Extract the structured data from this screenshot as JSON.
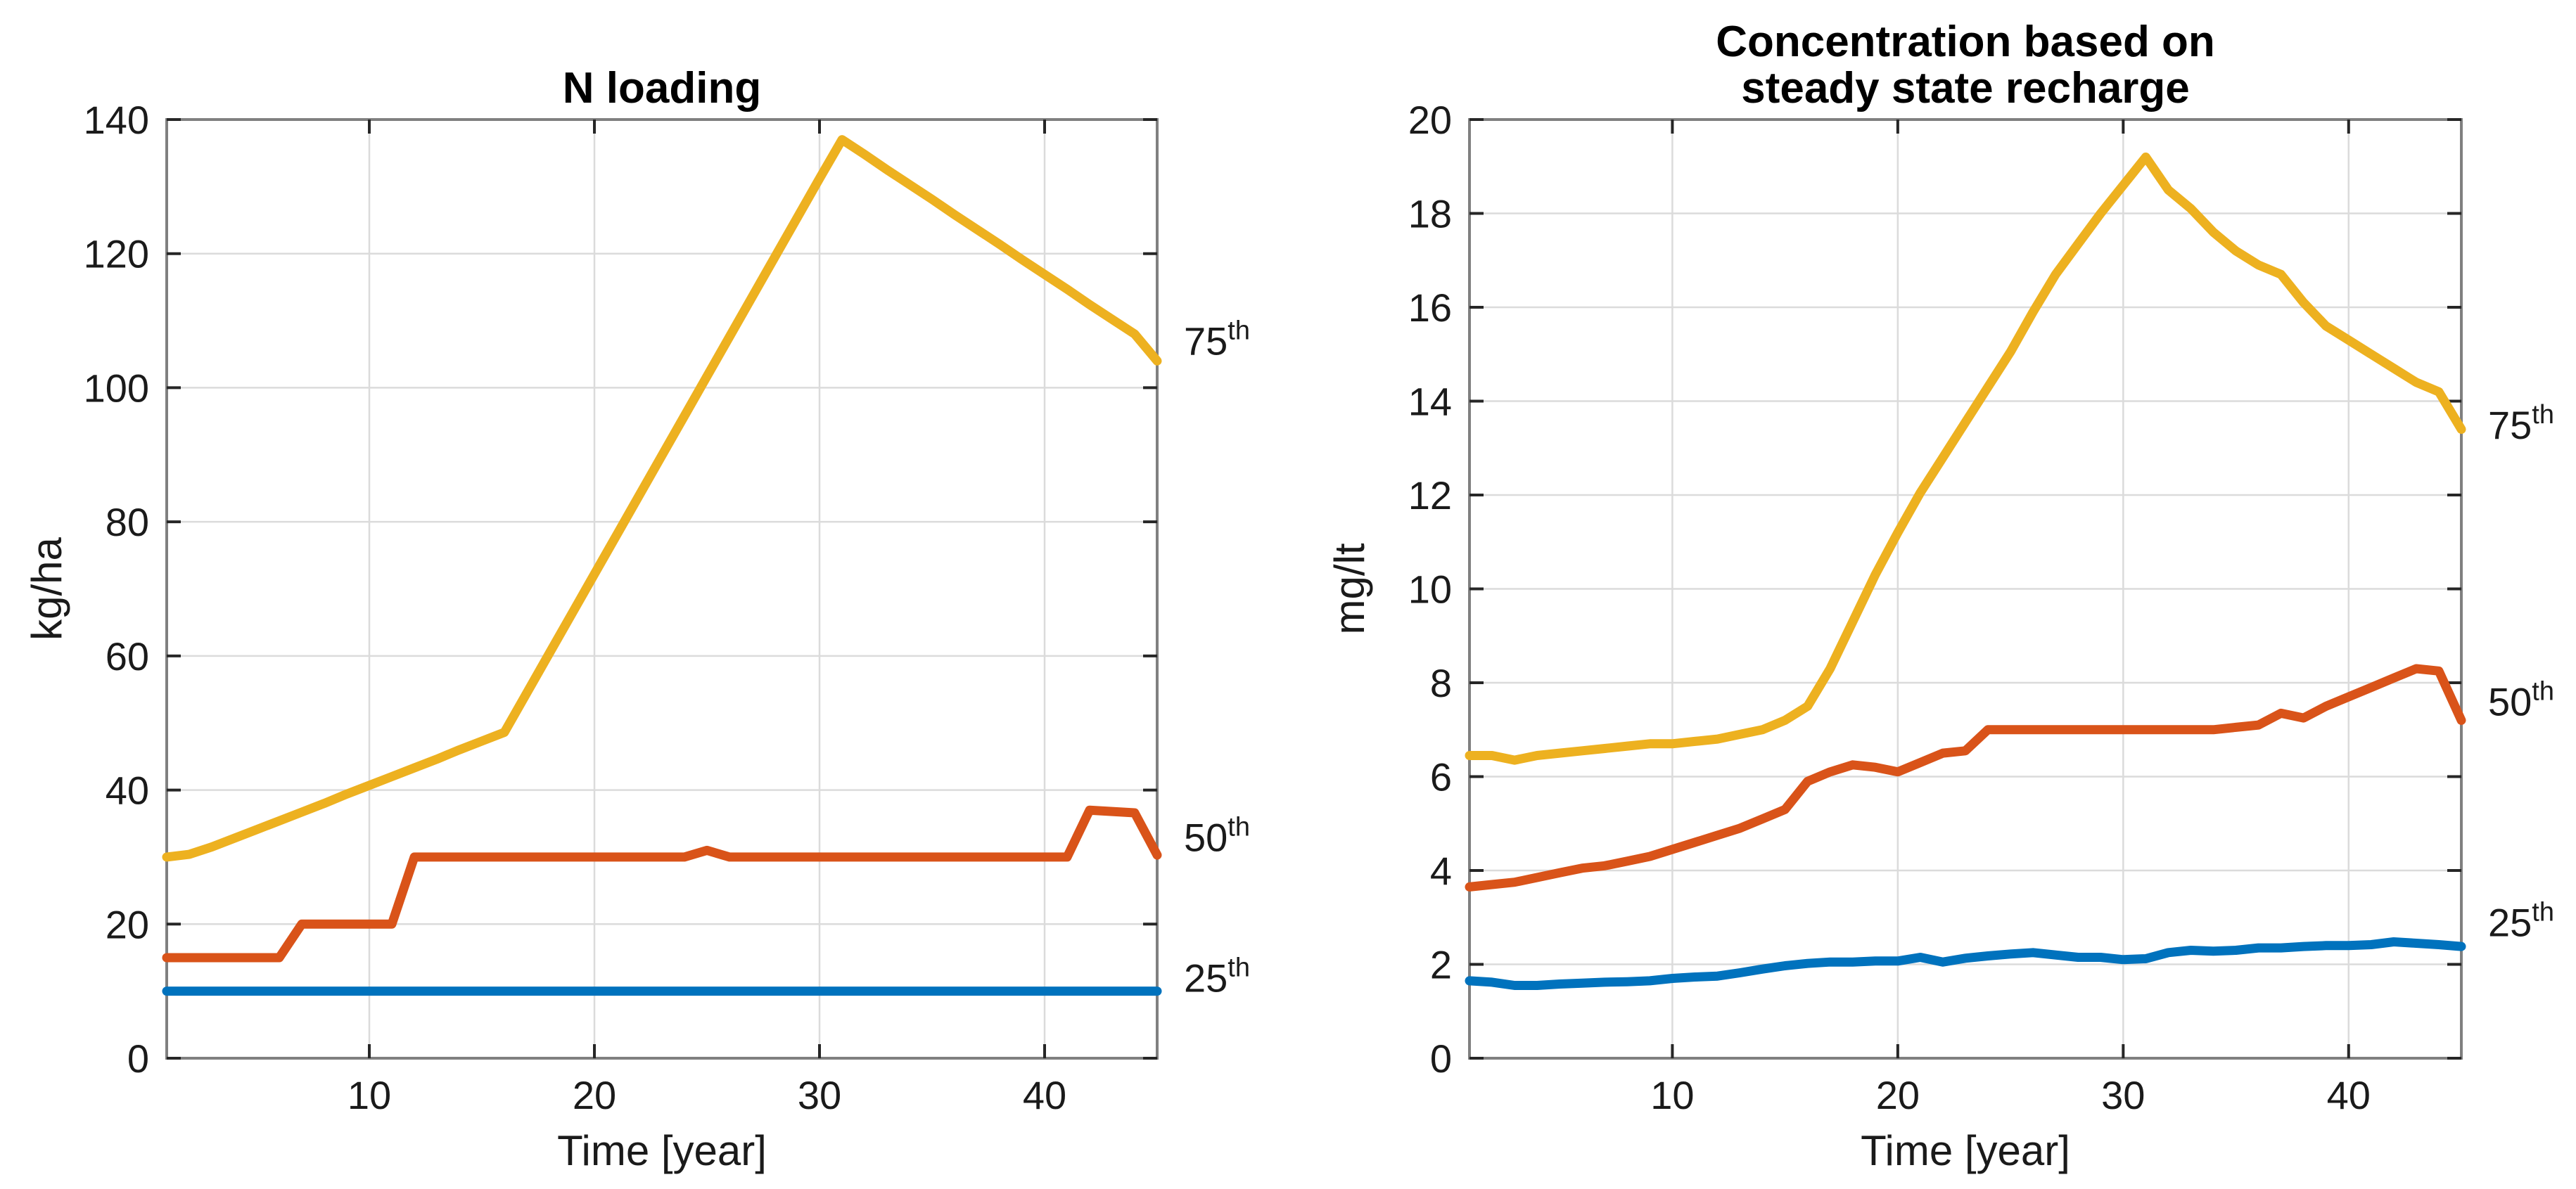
{
  "figure": {
    "background": "#ffffff",
    "description": "Two-panel percentile line chart figure"
  },
  "colors": {
    "p25": "#0072BD",
    "p50": "#D95319",
    "p75": "#EDB120",
    "grid": "#DBDBDB",
    "axis_box": "#808080",
    "tick_mark": "#262626",
    "text": "#1A1A1A"
  },
  "chart_data": [
    {
      "type": "line",
      "title_lines": [
        "N loading"
      ],
      "xlabel": "Time [year]",
      "ylabel": "kg/ha",
      "xlim": [
        1,
        45
      ],
      "ylim": [
        0,
        140
      ],
      "xticks": [
        10,
        20,
        30,
        40
      ],
      "yticks": [
        0,
        20,
        40,
        60,
        80,
        100,
        120,
        140
      ],
      "grid": true,
      "legend_position": "right-annotations",
      "x": [
        1,
        2,
        3,
        4,
        5,
        6,
        7,
        8,
        9,
        10,
        11,
        12,
        13,
        14,
        15,
        16,
        17,
        18,
        19,
        20,
        21,
        22,
        23,
        24,
        25,
        26,
        27,
        28,
        29,
        30,
        31,
        32,
        33,
        34,
        35,
        36,
        37,
        38,
        39,
        40,
        41,
        42,
        43,
        44,
        45
      ],
      "series": [
        {
          "name": "75th",
          "color_key": "p75",
          "values": [
            30,
            30.4,
            31.5,
            32.8,
            34.1,
            35.4,
            36.7,
            38,
            39.4,
            40.7,
            42,
            43.3,
            44.6,
            46,
            47.3,
            48.6,
            54.5,
            60.4,
            66.3,
            72.2,
            78.1,
            84,
            89.9,
            95.8,
            101.7,
            107.6,
            113.5,
            119.4,
            125.3,
            131.2,
            137,
            134.8,
            132.5,
            130.3,
            128.1,
            125.8,
            123.6,
            121.4,
            119.1,
            116.9,
            114.7,
            112.4,
            110.2,
            108,
            104
          ],
          "percentile_label": {
            "base": "75",
            "sup": "th",
            "y": 107
          }
        },
        {
          "name": "50th",
          "color_key": "p50",
          "values": [
            15,
            15,
            15,
            15,
            15,
            15,
            20,
            20,
            20,
            20,
            20,
            30,
            30,
            30,
            30,
            30,
            30,
            30,
            30,
            30,
            30,
            30,
            30,
            30,
            31,
            30,
            30,
            30,
            30,
            30,
            30,
            30,
            30,
            30,
            30,
            30,
            30,
            30,
            30,
            30,
            30,
            37,
            36.8,
            36.6,
            30.3
          ],
          "percentile_label": {
            "base": "50",
            "sup": "th",
            "y": 33
          }
        },
        {
          "name": "25th",
          "color_key": "p25",
          "values": [
            10,
            10,
            10,
            10,
            10,
            10,
            10,
            10,
            10,
            10,
            10,
            10,
            10,
            10,
            10,
            10,
            10,
            10,
            10,
            10,
            10,
            10,
            10,
            10,
            10,
            10,
            10,
            10,
            10,
            10,
            10,
            10,
            10,
            10,
            10,
            10,
            10,
            10,
            10,
            10,
            10,
            10,
            10,
            10,
            10
          ],
          "percentile_label": {
            "base": "25",
            "sup": "th",
            "y": 12
          }
        }
      ]
    },
    {
      "type": "line",
      "title_lines": [
        "Concentration based on",
        "steady state recharge"
      ],
      "xlabel": "Time [year]",
      "ylabel": "mg/lt",
      "xlim": [
        1,
        45
      ],
      "ylim": [
        0,
        20
      ],
      "xticks": [
        10,
        20,
        30,
        40
      ],
      "yticks": [
        0,
        2,
        4,
        6,
        8,
        10,
        12,
        14,
        16,
        18,
        20
      ],
      "grid": true,
      "legend_position": "right-annotations",
      "x": [
        1,
        2,
        3,
        4,
        5,
        6,
        7,
        8,
        9,
        10,
        11,
        12,
        13,
        14,
        15,
        16,
        17,
        18,
        19,
        20,
        21,
        22,
        23,
        24,
        25,
        26,
        27,
        28,
        29,
        30,
        31,
        32,
        33,
        34,
        35,
        36,
        37,
        38,
        39,
        40,
        41,
        42,
        43,
        44,
        45
      ],
      "series": [
        {
          "name": "75th",
          "color_key": "p75",
          "values": [
            6.45,
            6.45,
            6.35,
            6.45,
            6.5,
            6.55,
            6.6,
            6.65,
            6.7,
            6.7,
            6.75,
            6.8,
            6.9,
            7.0,
            7.2,
            7.5,
            8.3,
            9.3,
            10.3,
            11.2,
            12.05,
            12.8,
            13.55,
            14.3,
            15.05,
            15.9,
            16.7,
            17.35,
            18.0,
            18.6,
            19.2,
            18.5,
            18.1,
            17.6,
            17.2,
            16.9,
            16.7,
            16.1,
            15.6,
            15.3,
            15.0,
            14.7,
            14.4,
            14.2,
            13.4
          ],
          "percentile_label": {
            "base": "75",
            "sup": "th",
            "y": 13.5
          }
        },
        {
          "name": "50th",
          "color_key": "p50",
          "values": [
            3.65,
            3.7,
            3.75,
            3.85,
            3.95,
            4.05,
            4.1,
            4.2,
            4.3,
            4.45,
            4.6,
            4.75,
            4.9,
            5.1,
            5.3,
            5.9,
            6.1,
            6.25,
            6.2,
            6.1,
            6.3,
            6.5,
            6.55,
            7.0,
            7.0,
            7.0,
            7.0,
            7.0,
            7.0,
            7.0,
            7.0,
            7.0,
            7.0,
            7.0,
            7.05,
            7.1,
            7.35,
            7.25,
            7.5,
            7.7,
            7.9,
            8.1,
            8.3,
            8.25,
            7.2
          ],
          "percentile_label": {
            "base": "50",
            "sup": "th",
            "y": 7.6
          }
        },
        {
          "name": "25th",
          "color_key": "p25",
          "values": [
            1.65,
            1.62,
            1.55,
            1.55,
            1.58,
            1.6,
            1.62,
            1.63,
            1.65,
            1.7,
            1.73,
            1.75,
            1.82,
            1.9,
            1.97,
            2.02,
            2.05,
            2.05,
            2.07,
            2.07,
            2.15,
            2.05,
            2.13,
            2.18,
            2.22,
            2.25,
            2.2,
            2.15,
            2.15,
            2.1,
            2.12,
            2.25,
            2.3,
            2.28,
            2.3,
            2.35,
            2.35,
            2.38,
            2.4,
            2.4,
            2.42,
            2.48,
            2.45,
            2.42,
            2.38
          ],
          "percentile_label": {
            "base": "25",
            "sup": "th",
            "y": 2.9
          }
        }
      ]
    }
  ]
}
